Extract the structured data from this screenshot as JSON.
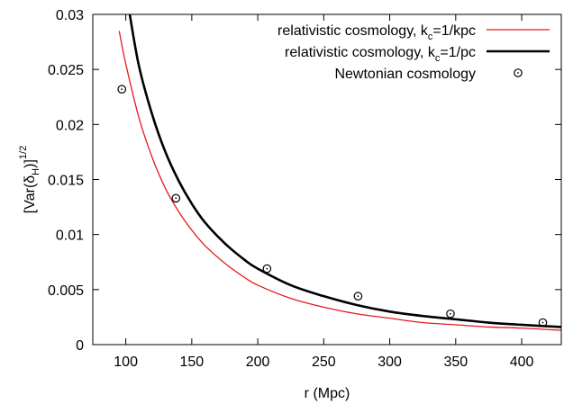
{
  "chart_data": {
    "type": "line",
    "xlabel": "r (Mpc)",
    "ylabel": {
      "base": "[Var(δ",
      "sub": "H",
      "tail": ")]",
      "sup": "1/2"
    },
    "xlim": [
      75,
      430
    ],
    "ylim": [
      0,
      0.03
    ],
    "x_ticks": [
      100,
      150,
      200,
      250,
      300,
      350,
      400
    ],
    "x_tick_labels": [
      "100",
      "150",
      "200",
      "250",
      "300",
      "350",
      "400"
    ],
    "y_ticks": [
      0,
      0.005,
      0.01,
      0.015,
      0.02,
      0.025,
      0.03
    ],
    "y_tick_labels": [
      "0",
      "0.005",
      "0.01",
      "0.015",
      "0.02",
      "0.025",
      "0.03"
    ],
    "grid": false,
    "legend_position": "top-right",
    "series": [
      {
        "name": "relativistic cosmology, k_c=1/kpc",
        "legend": {
          "base": "relativistic cosmology, k",
          "sub": "c",
          "tail": "=1/kpc"
        },
        "style": "line",
        "color": "#e41a1c",
        "x": [
          95,
          100,
          110,
          120,
          130,
          140,
          150,
          160,
          175,
          190,
          200,
          225,
          250,
          275,
          300,
          325,
          350,
          375,
          400,
          430
        ],
        "y": [
          0.0285,
          0.0255,
          0.0206,
          0.017,
          0.0142,
          0.0121,
          0.0104,
          0.009,
          0.0074,
          0.0061,
          0.0054,
          0.0042,
          0.0034,
          0.0028,
          0.0024,
          0.002,
          0.0018,
          0.0016,
          0.0015,
          0.0013
        ]
      },
      {
        "name": "relativistic cosmology, k_c=1/pc",
        "legend": {
          "base": "relativistic cosmology, k",
          "sub": "c",
          "tail": "=1/pc"
        },
        "style": "line",
        "color": "#000000",
        "x": [
          103,
          110,
          120,
          130,
          140,
          150,
          160,
          175,
          190,
          200,
          225,
          250,
          275,
          300,
          325,
          350,
          375,
          400,
          430
        ],
        "y": [
          0.03,
          0.0253,
          0.0209,
          0.0175,
          0.0149,
          0.0128,
          0.0111,
          0.0092,
          0.0077,
          0.0069,
          0.0054,
          0.0044,
          0.0036,
          0.003,
          0.0026,
          0.0023,
          0.002,
          0.0018,
          0.0016
        ]
      },
      {
        "name": "Newtonian cosmology",
        "legend": {
          "base": "Newtonian cosmology",
          "sub": "",
          "tail": ""
        },
        "style": "points",
        "color": "#000000",
        "x": [
          97,
          138,
          207,
          276,
          346,
          416
        ],
        "y": [
          0.0232,
          0.0133,
          0.0069,
          0.0044,
          0.0028,
          0.002
        ]
      }
    ]
  }
}
